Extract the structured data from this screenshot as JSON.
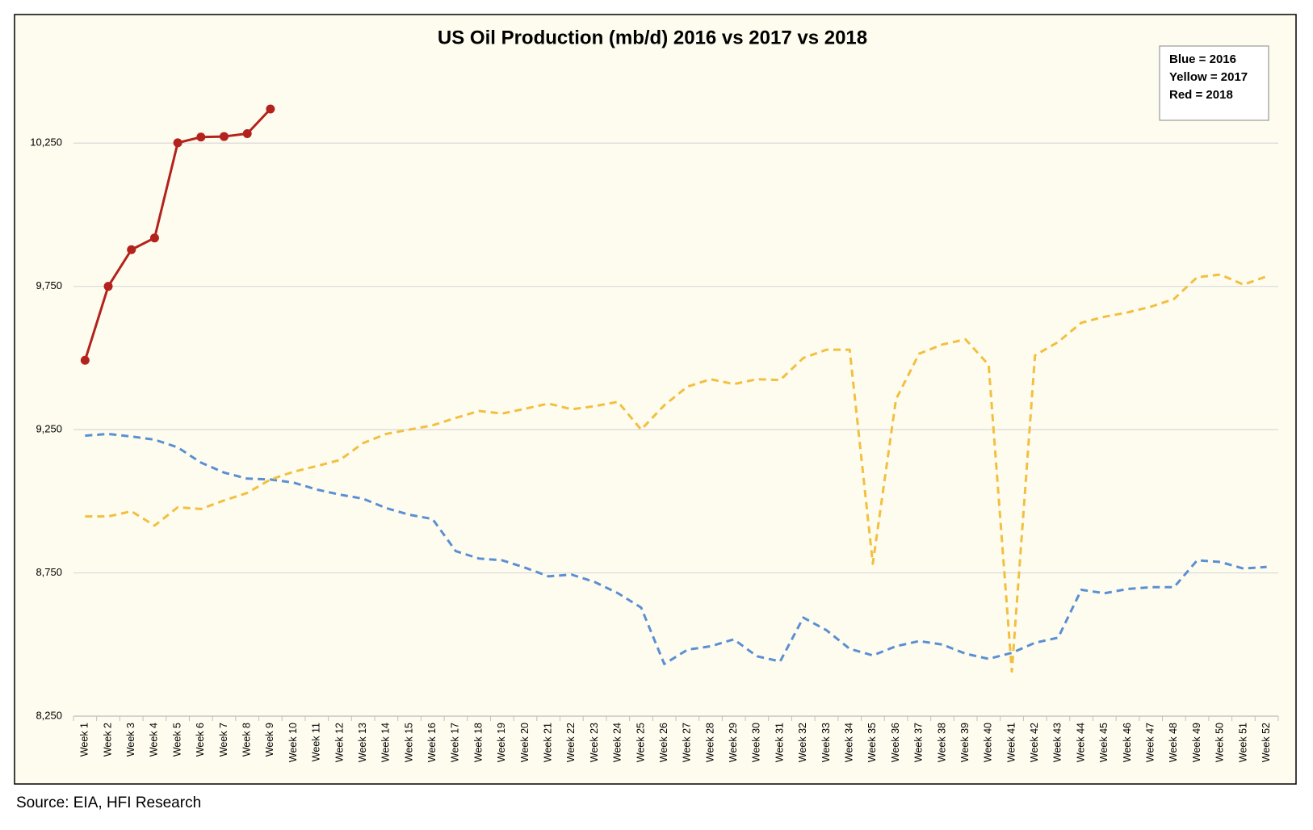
{
  "chart_data": {
    "type": "line",
    "title": "US Oil Production (mb/d) 2016 vs 2017 vs 2018",
    "annotations": [
      "Blue = 2016",
      "Yellow = 2017",
      "Red = 2018"
    ],
    "source": "Source: EIA, HFI Research",
    "categories": [
      "Week 1",
      "Week 2",
      "Week 3",
      "Week 4",
      "Week 5",
      "Week 6",
      "Week 7",
      "Week 8",
      "Week 9",
      "Week 10",
      "Week 11",
      "Week 12",
      "Week 13",
      "Week 14",
      "Week 15",
      "Week 16",
      "Week 17",
      "Week 18",
      "Week 19",
      "Week 20",
      "Week 21",
      "Week 22",
      "Week 23",
      "Week 24",
      "Week 25",
      "Week 26",
      "Week 27",
      "Week 28",
      "Week 29",
      "Week 30",
      "Week 31",
      "Week 32",
      "Week 33",
      "Week 34",
      "Week 35",
      "Week 36",
      "Week 37",
      "Week 38",
      "Week 39",
      "Week 40",
      "Week 41",
      "Week 42",
      "Week 43",
      "Week 44",
      "Week 45",
      "Week 46",
      "Week 47",
      "Week 48",
      "Week 49",
      "Week 50",
      "Week 51",
      "Week 52"
    ],
    "series": [
      {
        "color": "#5b8fd3",
        "line_style": "dashed",
        "markers": false,
        "values": [
          9229,
          9235,
          9226,
          9215,
          9188,
          9135,
          9100,
          9079,
          9076,
          9065,
          9041,
          9023,
          9009,
          8976,
          8953,
          8938,
          8826,
          8800,
          8794,
          8768,
          8738,
          8744,
          8718,
          8679,
          8629,
          8432,
          8482,
          8494,
          8518,
          8459,
          8441,
          8594,
          8550,
          8485,
          8462,
          8494,
          8512,
          8500,
          8468,
          8450,
          8471,
          8506,
          8524,
          8691,
          8679,
          8694,
          8700,
          8700,
          8794,
          8788,
          8765,
          8771
        ]
      },
      {
        "color": "#f2c040",
        "line_style": "dashed",
        "markers": false,
        "values": [
          8947,
          8947,
          8965,
          8915,
          8979,
          8973,
          9003,
          9029,
          9076,
          9103,
          9123,
          9144,
          9203,
          9235,
          9250,
          9265,
          9291,
          9315,
          9306,
          9323,
          9341,
          9321,
          9332,
          9347,
          9250,
          9335,
          9400,
          9426,
          9409,
          9426,
          9423,
          9500,
          9529,
          9529,
          8782,
          9356,
          9515,
          9547,
          9565,
          9476,
          8406,
          9509,
          9556,
          9623,
          9644,
          9659,
          9679,
          9706,
          9782,
          9791,
          9756,
          9785
        ]
      },
      {
        "color": "#b3221c",
        "line_style": "solid",
        "markers": true,
        "values": [
          9492,
          9750,
          9878,
          9919,
          10251,
          10271,
          10273,
          10283,
          10369,
          null,
          null,
          null,
          null,
          null,
          null,
          null,
          null,
          null,
          null,
          null,
          null,
          null,
          null,
          null,
          null,
          null,
          null,
          null,
          null,
          null,
          null,
          null,
          null,
          null,
          null,
          null,
          null,
          null,
          null,
          null,
          null,
          null,
          null,
          null,
          null,
          null,
          null,
          null,
          null,
          null,
          null,
          null
        ]
      }
    ],
    "ylim": [
      8250,
      10400
    ],
    "yticks": [
      {
        "value": 8250,
        "label": "8,250"
      },
      {
        "value": 8750,
        "label": "8,750"
      },
      {
        "value": 9250,
        "label": "9,250"
      },
      {
        "value": 9750,
        "label": "9,750"
      },
      {
        "value": 10250,
        "label": "10,250"
      }
    ],
    "grid": true
  }
}
